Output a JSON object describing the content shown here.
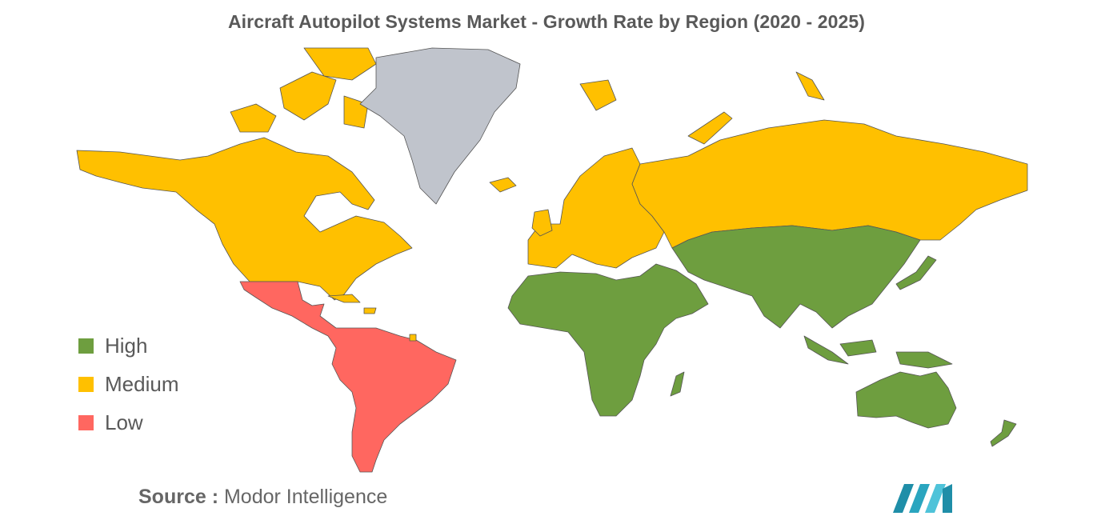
{
  "title": "Aircraft Autopilot Systems Market - Growth Rate by Region (2020 - 2025)",
  "legend": [
    {
      "label": "High",
      "color": "#6e9e3f"
    },
    {
      "label": "Medium",
      "color": "#ffc000"
    },
    {
      "label": "Low",
      "color": "#ff6760"
    }
  ],
  "no_data_color": "#c0c4cc",
  "regions": [
    {
      "region": "North America",
      "level": "Medium"
    },
    {
      "region": "Europe",
      "level": "Medium"
    },
    {
      "region": "Russia",
      "level": "Medium"
    },
    {
      "region": "Asia-Pacific",
      "level": "High"
    },
    {
      "region": "Middle East and Africa",
      "level": "High"
    },
    {
      "region": "Latin America",
      "level": "Low"
    },
    {
      "region": "Greenland",
      "level": "No data"
    }
  ],
  "source": {
    "prefix": "Source :",
    "text": "Modor Intelligence"
  },
  "logo": {
    "icon": "mordor-intelligence-logo",
    "colors": [
      "#1f8ea8",
      "#4fc3d9"
    ]
  }
}
